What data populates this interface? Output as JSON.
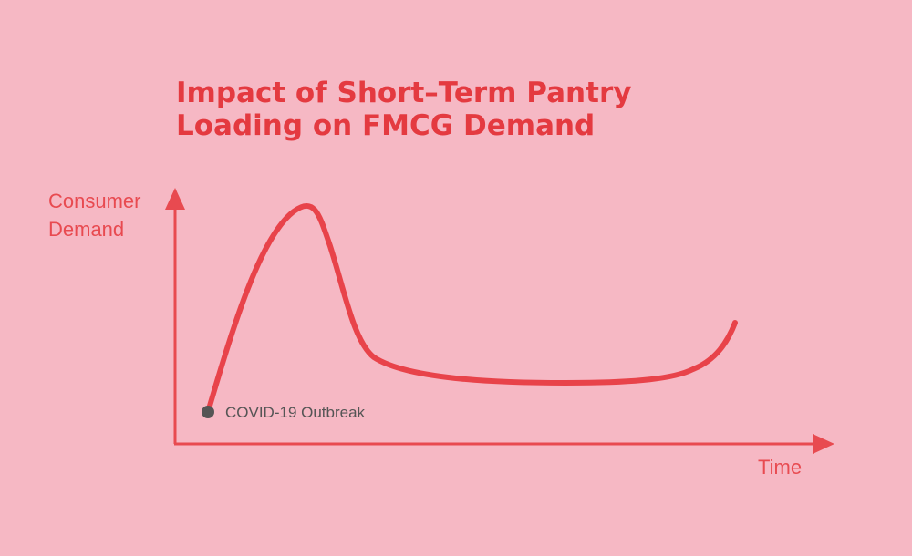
{
  "title": {
    "lines": [
      "Impact of Short–Term Pantry",
      "Loading on FMCG Demand"
    ]
  },
  "y_axis": {
    "label_lines": [
      "Consumer",
      "Demand"
    ]
  },
  "x_axis": {
    "label": "Time"
  },
  "annotation": {
    "label": "COVID-19 Outbreak"
  }
}
